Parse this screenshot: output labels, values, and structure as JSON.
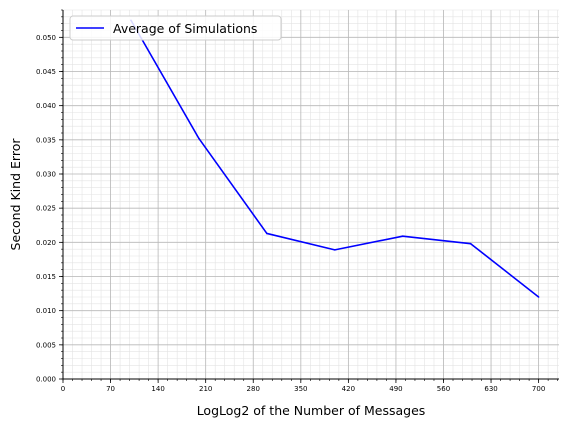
{
  "chart_data": {
    "type": "line",
    "title": "",
    "xlabel": "LogLog2 of the Number of Messages",
    "ylabel": "Second Kind Error",
    "xlim": [
      0,
      730
    ],
    "ylim": [
      0,
      0.054
    ],
    "x_ticks": [
      0,
      70,
      140,
      210,
      280,
      350,
      420,
      490,
      560,
      630,
      700
    ],
    "x_tick_labels": [
      "0",
      "70",
      "140",
      "210",
      "280",
      "350",
      "420",
      "490",
      "560",
      "630",
      "700"
    ],
    "y_ticks": [
      0,
      0.005,
      0.01,
      0.015,
      0.02,
      0.025,
      0.03,
      0.035,
      0.04,
      0.045,
      0.05
    ],
    "y_tick_labels": [
      "0.000",
      "0.005",
      "0.010",
      "0.015",
      "0.020",
      "0.025",
      "0.030",
      "0.035",
      "0.040",
      "0.045",
      "0.050"
    ],
    "grid": true,
    "minor_grid": true,
    "legend": {
      "placement": "top-left",
      "entries": [
        "Average of Simulations"
      ]
    },
    "series": [
      {
        "name": "Average of Simulations",
        "color": "#0000ff",
        "x": [
          100,
          200,
          300,
          400,
          500,
          600,
          700
        ],
        "y": [
          0.0525,
          0.0352,
          0.0213,
          0.0189,
          0.0209,
          0.0198,
          0.012
        ]
      }
    ]
  }
}
